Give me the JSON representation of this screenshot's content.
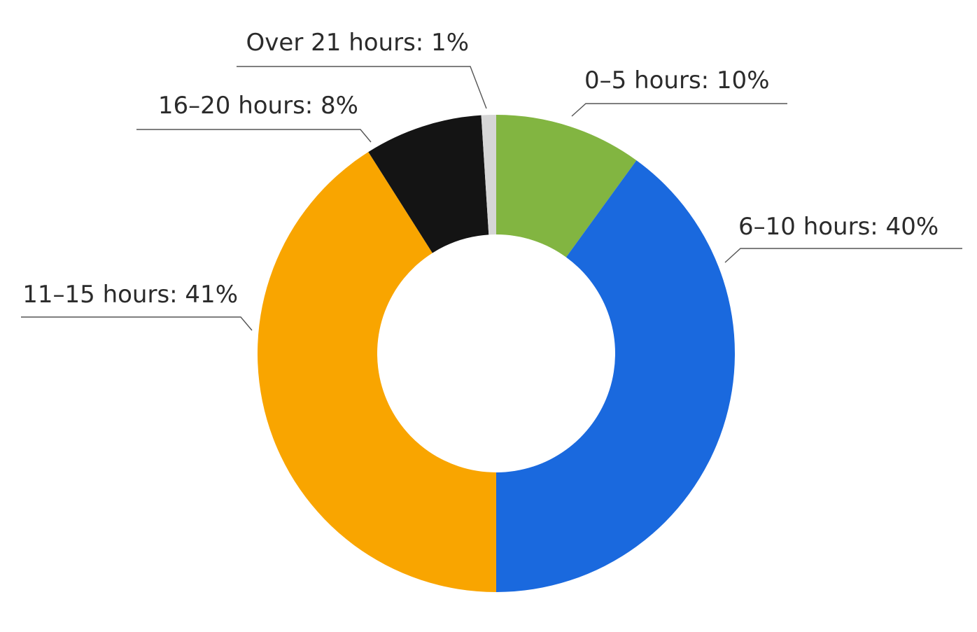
{
  "chart_data": {
    "type": "donut",
    "values": [
      10,
      40,
      41,
      8,
      1
    ],
    "value_labels": [
      "0–5 hours: 10%",
      "6–10 hours: 40%",
      "11–15 hours: 41%",
      "16–20 hours: 8%",
      "Over 21 hours: 1%"
    ],
    "colors": [
      "#82b541",
      "#1a69de",
      "#f9a500",
      "#141414",
      "#d6d6d6"
    ]
  }
}
